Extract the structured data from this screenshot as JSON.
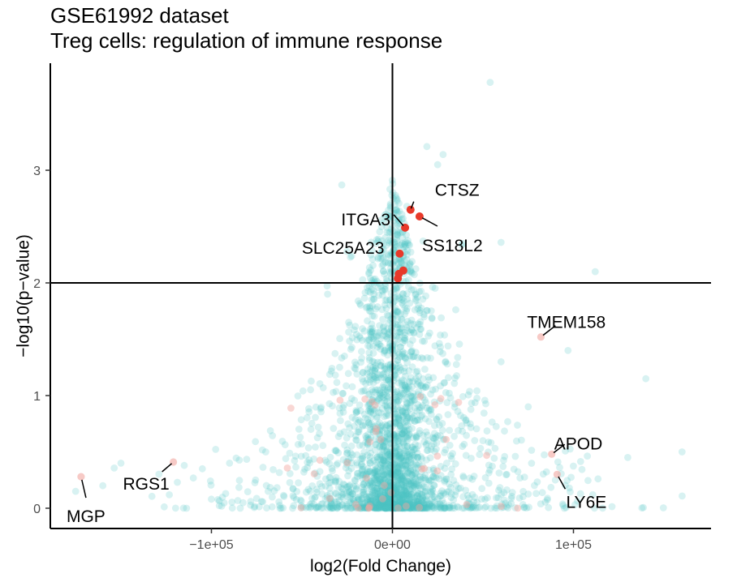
{
  "chart_data": {
    "type": "scatter",
    "title": "GSE61992 dataset",
    "subtitle": "Treg cells: regulation of immune response",
    "xlabel": "log2(Fold Change)",
    "ylabel": "−log10(p−value)",
    "xlim": [
      -189000,
      176000
    ],
    "ylim": [
      -0.18,
      3.95
    ],
    "x_ticks": [
      {
        "value": -100000,
        "label": "−1e+05"
      },
      {
        "value": 0,
        "label": "0e+00"
      },
      {
        "value": 100000,
        "label": "1e+05"
      }
    ],
    "y_ticks": [
      {
        "value": 0,
        "label": "0"
      },
      {
        "value": 1,
        "label": "1"
      },
      {
        "value": 2,
        "label": "2"
      },
      {
        "value": 3,
        "label": "3"
      }
    ],
    "reference_lines": {
      "x": 0,
      "y": 2
    },
    "grid": false,
    "legend": "none",
    "colors": {
      "background_points": "#4fc3c3",
      "significant_points": "#e8392a",
      "labeled_faint_points": "#f2a7a0",
      "axis": "#000000"
    },
    "background_cloud": {
      "description_points": "approximately 3000 genes, centered near x=0, y decreasing with distance",
      "sample_points": [
        [
          54000,
          3.78
        ],
        [
          19000,
          3.21
        ],
        [
          28000,
          3.14
        ],
        [
          25000,
          3.05
        ],
        [
          -28000,
          2.87
        ],
        [
          8000,
          2.68
        ],
        [
          -3000,
          2.45
        ],
        [
          -25000,
          2.28
        ],
        [
          39000,
          2.35
        ],
        [
          60000,
          2.36
        ],
        [
          -9000,
          2.35
        ],
        [
          112000,
          2.1
        ],
        [
          97000,
          1.4
        ],
        [
          60000,
          1.3
        ],
        [
          -20000,
          0.85
        ],
        [
          -45000,
          0.7
        ],
        [
          -70000,
          0.5
        ],
        [
          -90000,
          0.4
        ],
        [
          -105000,
          0.35
        ],
        [
          -115000,
          0.38
        ],
        [
          -150000,
          0.4
        ],
        [
          -160000,
          0.2
        ],
        [
          -175000,
          0.15
        ],
        [
          130000,
          0.45
        ],
        [
          160000,
          0.5
        ],
        [
          140000,
          1.15
        ],
        [
          75000,
          0.9
        ],
        [
          50000,
          0.6
        ],
        [
          30000,
          0.4
        ],
        [
          90000,
          0.25
        ]
      ]
    },
    "significant_genes": [
      {
        "label": "CTSZ",
        "x": 10000,
        "y": 2.65
      },
      {
        "label": "SS18L2",
        "x": 15000,
        "y": 2.59
      },
      {
        "label": "ITGA3",
        "x": 7000,
        "y": 2.49
      },
      {
        "label": "SLC25A23",
        "x": 4000,
        "y": 2.26
      },
      {
        "label": "",
        "x": 6000,
        "y": 2.11
      },
      {
        "label": "",
        "x": 3500,
        "y": 2.08
      },
      {
        "label": "",
        "x": 3000,
        "y": 2.04
      }
    ],
    "labeled_genes": [
      {
        "label": "TMEM158",
        "x": 82000,
        "y": 1.52
      },
      {
        "label": "APOD",
        "x": 88000,
        "y": 0.48
      },
      {
        "label": "LY6E",
        "x": 91000,
        "y": 0.3
      },
      {
        "label": "RGS1",
        "x": -121000,
        "y": 0.41
      },
      {
        "label": "MGP",
        "x": -172000,
        "y": 0.28
      }
    ]
  }
}
